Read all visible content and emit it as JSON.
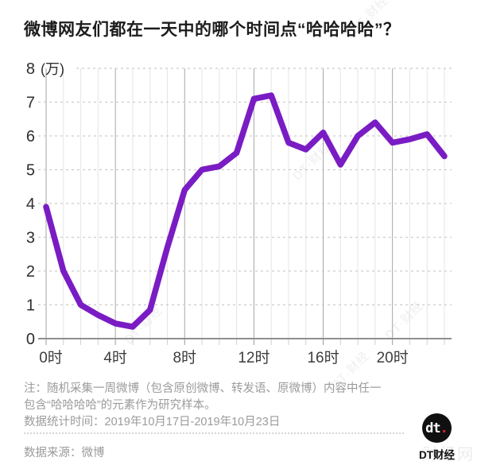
{
  "title": "微博网友们都在一天中的哪个时间点“哈哈哈哈”？",
  "chart_data": {
    "type": "line",
    "x": [
      0,
      1,
      2,
      3,
      4,
      5,
      6,
      7,
      8,
      9,
      10,
      11,
      12,
      13,
      14,
      15,
      16,
      17,
      18,
      19,
      20,
      21,
      22,
      23
    ],
    "values": [
      3.9,
      2.0,
      1.0,
      0.7,
      0.45,
      0.35,
      0.85,
      2.7,
      4.4,
      5.0,
      5.1,
      5.5,
      7.1,
      7.2,
      5.8,
      5.6,
      6.1,
      5.15,
      6.0,
      6.4,
      5.8,
      5.9,
      6.05,
      5.4
    ],
    "title": "微博网友们都在一天中的哪个时间点“哈哈哈哈”？",
    "xlabel": "",
    "ylabel": "",
    "y_unit": "(万)",
    "y_ticks": [
      0,
      1,
      2,
      3,
      4,
      5,
      6,
      7,
      8
    ],
    "ylim": [
      0,
      8
    ],
    "x_tick_hours": [
      0,
      4,
      8,
      12,
      16,
      20
    ],
    "x_tick_labels": [
      "0时",
      "4时",
      "8时",
      "12时",
      "16时",
      "20时"
    ],
    "grid": "on",
    "legend": "none",
    "line_color": "#7a1cc4"
  },
  "notes": {
    "line1": "注：随机采集一周微博（包含原创微博、转发语、原微博）内容中任一",
    "line2": "包含“哈哈哈哈”的元素作为研究样本。",
    "line3": "数据统计时间：2019年10月17日-2019年10月23日"
  },
  "source": "数据来源：微博",
  "logo": {
    "mark": "dt",
    "dot": ".",
    "caption": "DT财经"
  },
  "watermark": {
    "text": "DT·财经",
    "corner": "财经网"
  }
}
